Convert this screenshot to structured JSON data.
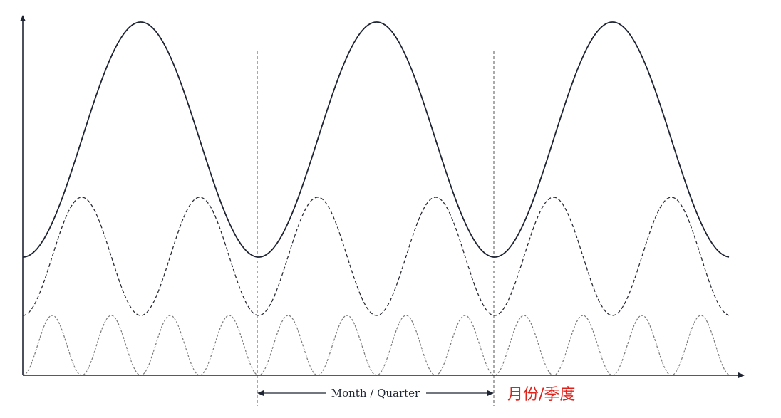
{
  "annotation": {
    "period_label": "Month / Quarter",
    "cn_label": "月份/季度",
    "cn_color": "#e0221a"
  },
  "colors": {
    "axis": "#1f2433",
    "main_wave": "#1f2433",
    "dashed_wave": "#2a2d36",
    "dotted_wave": "#7a7a7a",
    "divider": "#555555"
  },
  "waves": [
    {
      "id": "main",
      "style": "solid",
      "cycles_per_period": 1
    },
    {
      "id": "medium",
      "style": "dashed",
      "cycles_per_period": 2
    },
    {
      "id": "small",
      "style": "dotted",
      "cycles_per_period": 4
    }
  ],
  "periods": 3
}
